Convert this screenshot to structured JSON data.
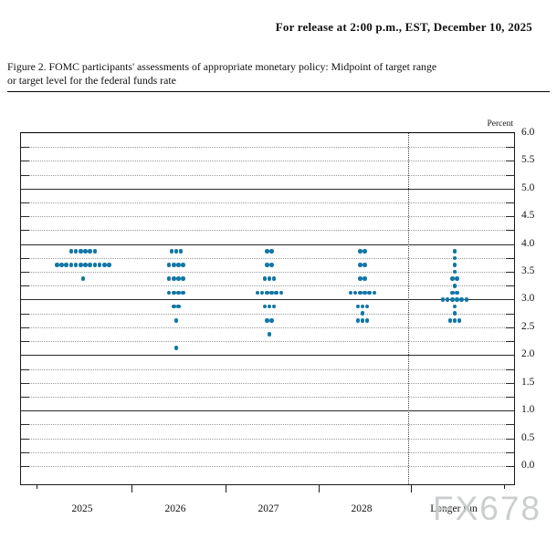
{
  "header": {
    "release_line": "For release at 2:00 p.m., EST, December 10, 2025"
  },
  "figure": {
    "caption_line1": "Figure 2. FOMC participants' assessments of appropriate monetary policy: Midpoint of target range",
    "caption_line2": "or target level for the federal funds rate"
  },
  "watermark": "FX678",
  "chart_data": {
    "type": "scatter",
    "subtype": "fomc-dot-plot",
    "unit_label": "Percent",
    "categories": [
      "2025",
      "2026",
      "2027",
      "2028",
      "Longer run"
    ],
    "ylim": [
      0,
      6
    ],
    "gridline_step": 0.25,
    "solid_gridlines": [
      6.0,
      5.0,
      4.0,
      3.0,
      2.0,
      1.0
    ],
    "y_tick_labels": [
      "6.0",
      "5.5",
      "5.0",
      "4.5",
      "4.0",
      "3.5",
      "3.0",
      "2.5",
      "2.0",
      "1.5",
      "1.0",
      "0.5",
      "0.0"
    ],
    "dot_color": "#1176A6",
    "legend_position": "none",
    "series": [
      {
        "category": "2025",
        "dots": [
          {
            "rate": 3.875,
            "count": 6
          },
          {
            "rate": 3.625,
            "count": 12
          },
          {
            "rate": 3.375,
            "count": 1
          }
        ]
      },
      {
        "category": "2026",
        "dots": [
          {
            "rate": 3.875,
            "count": 3
          },
          {
            "rate": 3.625,
            "count": 4
          },
          {
            "rate": 3.375,
            "count": 4
          },
          {
            "rate": 3.125,
            "count": 4
          },
          {
            "rate": 2.875,
            "count": 2
          },
          {
            "rate": 2.625,
            "count": 1
          },
          {
            "rate": 2.125,
            "count": 1
          }
        ]
      },
      {
        "category": "2027",
        "dots": [
          {
            "rate": 3.875,
            "count": 2
          },
          {
            "rate": 3.625,
            "count": 2
          },
          {
            "rate": 3.375,
            "count": 3
          },
          {
            "rate": 3.125,
            "count": 6
          },
          {
            "rate": 2.875,
            "count": 3
          },
          {
            "rate": 2.625,
            "count": 2
          },
          {
            "rate": 2.375,
            "count": 1
          }
        ]
      },
      {
        "category": "2028",
        "dots": [
          {
            "rate": 3.875,
            "count": 2
          },
          {
            "rate": 3.625,
            "count": 2
          },
          {
            "rate": 3.375,
            "count": 2
          },
          {
            "rate": 3.125,
            "count": 6
          },
          {
            "rate": 2.875,
            "count": 3
          },
          {
            "rate": 2.75,
            "count": 1
          },
          {
            "rate": 2.625,
            "count": 3
          }
        ]
      },
      {
        "category": "Longer run",
        "dots": [
          {
            "rate": 3.875,
            "count": 1
          },
          {
            "rate": 3.75,
            "count": 1
          },
          {
            "rate": 3.625,
            "count": 1
          },
          {
            "rate": 3.5,
            "count": 1
          },
          {
            "rate": 3.375,
            "count": 2
          },
          {
            "rate": 3.25,
            "count": 1
          },
          {
            "rate": 3.125,
            "count": 2
          },
          {
            "rate": 3.0,
            "count": 6
          },
          {
            "rate": 2.875,
            "count": 1
          },
          {
            "rate": 2.75,
            "count": 1
          },
          {
            "rate": 2.625,
            "count": 3
          }
        ]
      }
    ]
  }
}
